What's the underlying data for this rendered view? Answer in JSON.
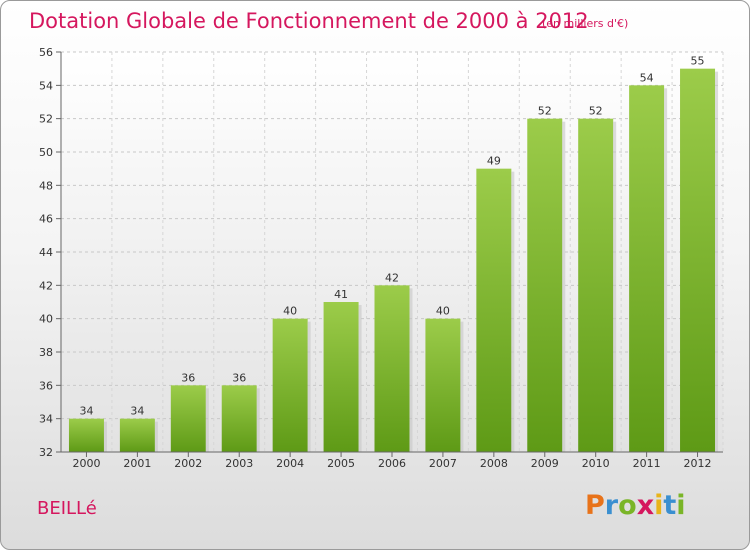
{
  "header": {
    "title": "Dotation Globale de Fonctionnement de 2000 à 2012",
    "unit": "(en milliers d'€)"
  },
  "footer": {
    "commune": "BEILLé",
    "logo_letters": [
      "P",
      "r",
      "o",
      "x",
      "i",
      "t",
      "i"
    ],
    "logo_colors": [
      "#e8731a",
      "#3a8fd0",
      "#7ab527",
      "#d5175e",
      "#e8b41a",
      "#3a8fd0",
      "#7ab527"
    ]
  },
  "chart_data": {
    "type": "bar",
    "title": "Dotation Globale de Fonctionnement de 2000 à 2012",
    "xlabel": "",
    "ylabel": "",
    "categories": [
      "2000",
      "2001",
      "2002",
      "2003",
      "2004",
      "2005",
      "2006",
      "2007",
      "2008",
      "2009",
      "2010",
      "2011",
      "2012"
    ],
    "values": [
      34,
      34,
      36,
      36,
      40,
      41,
      42,
      40,
      49,
      52,
      52,
      54,
      55
    ],
    "ylim": [
      32,
      56
    ],
    "yticks": [
      32,
      34,
      36,
      38,
      40,
      42,
      44,
      46,
      48,
      50,
      52,
      54,
      56
    ],
    "grid": true,
    "bar_color": "#8cc63f"
  }
}
